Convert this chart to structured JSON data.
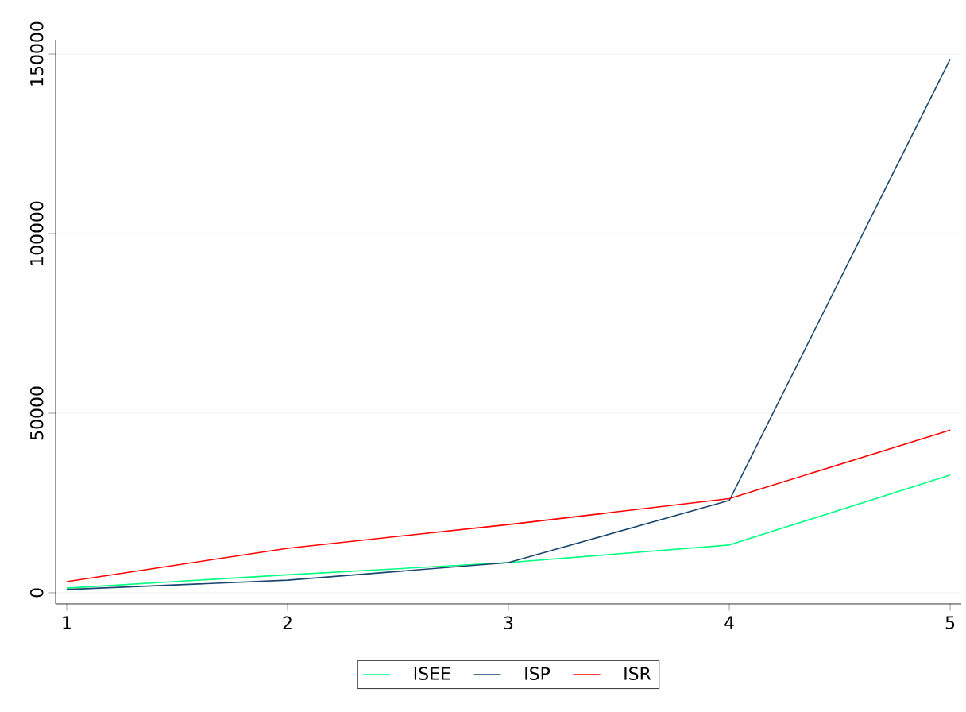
{
  "chart_data": {
    "type": "line",
    "x": [
      1,
      2,
      3,
      4,
      5
    ],
    "series": [
      {
        "name": "ISEE",
        "color": "#00ff7f",
        "values": [
          1300,
          5000,
          8400,
          13300,
          32800
        ]
      },
      {
        "name": "ISP",
        "color": "#1a476f",
        "values": [
          900,
          3500,
          8400,
          25700,
          148600
        ]
      },
      {
        "name": "ISR",
        "color": "#ff0000",
        "values": [
          3100,
          12400,
          19000,
          26200,
          45300
        ]
      }
    ],
    "xlim": [
      0.95,
      5.05
    ],
    "ylim": [
      -3100,
      154000
    ],
    "xticks": [
      1,
      2,
      3,
      4,
      5
    ],
    "yticks": [
      0,
      50000,
      100000,
      150000
    ],
    "grid": "y",
    "legend": "bottom",
    "marker": "none",
    "line_style": "solid"
  }
}
